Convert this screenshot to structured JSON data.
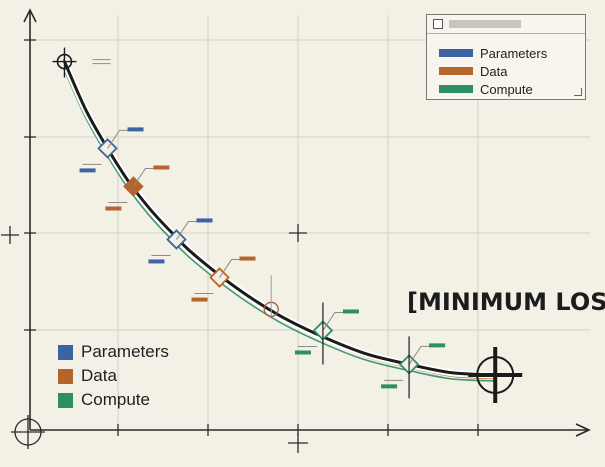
{
  "chart_data": {
    "type": "line",
    "title": "",
    "xlabel": "",
    "ylabel": "",
    "grid": true,
    "curve": {
      "x": [
        0.0,
        0.5,
        1.0,
        1.5,
        2.0,
        2.5,
        3.0,
        4.0,
        5.0,
        6.0,
        7.0,
        8.0,
        9.0,
        10.0
      ],
      "y": [
        8.7,
        7.55,
        6.65,
        5.85,
        5.2,
        4.65,
        4.15,
        3.35,
        2.7,
        2.2,
        1.8,
        1.55,
        1.35,
        1.3
      ]
    },
    "series": [
      {
        "name": "Parameters",
        "x": [
          0.5,
          2.0,
          3.6,
          6.5
        ],
        "y": [
          7.4,
          5.05,
          3.35,
          1.35
        ]
      },
      {
        "name": "Data",
        "x": [
          1.2,
          3.0,
          6.0,
          10.0
        ],
        "y": [
          6.4,
          4.05,
          2.35,
          1.05
        ]
      },
      {
        "name": "Compute",
        "x": [
          5.0,
          7.2,
          8.8
        ],
        "y": [
          2.1,
          1.25,
          0.95
        ]
      }
    ],
    "markers": [
      {
        "series": "start",
        "x": 0.0,
        "y": 8.7,
        "shape": "crosshair"
      },
      {
        "series": "Parameters",
        "x": 1.0,
        "y": 6.65,
        "shape": "diamond-open"
      },
      {
        "series": "Data",
        "x": 1.6,
        "y": 5.75,
        "shape": "diamond-filled"
      },
      {
        "series": "Parameters",
        "x": 2.6,
        "y": 4.5,
        "shape": "diamond-open"
      },
      {
        "series": "Data",
        "x": 3.6,
        "y": 3.6,
        "shape": "diamond-open"
      },
      {
        "series": "other",
        "x": 4.8,
        "y": 2.85,
        "shape": "circle-open"
      },
      {
        "series": "Compute",
        "x": 6.0,
        "y": 2.35,
        "shape": "diamond-open"
      },
      {
        "series": "Compute",
        "x": 8.0,
        "y": 1.55,
        "shape": "diamond-open"
      },
      {
        "series": "minimum",
        "x": 10.0,
        "y": 1.3,
        "shape": "crosshair-large"
      }
    ],
    "xlim": [
      -0.8,
      12.2
    ],
    "ylim": [
      0,
      9.8
    ],
    "annotation": "[MINIMUM LOSS]",
    "legend_panel": [
      "Parameters",
      "Data",
      "Compute"
    ],
    "legend_inline": [
      "Parameters",
      "Data",
      "Compute"
    ]
  },
  "colors": {
    "Parameters": "#3d63a3",
    "Data": "#b5652b",
    "Compute": "#2f8f64",
    "curve": "#1b1b1b",
    "grid": "#d5d1c5",
    "axis": "#2a2a2a"
  }
}
